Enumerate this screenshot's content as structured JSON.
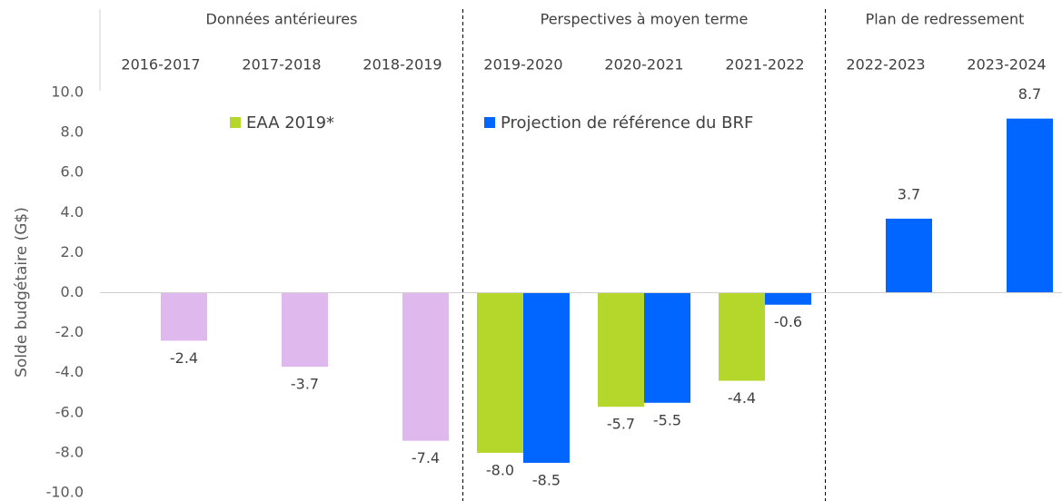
{
  "chart_data": {
    "type": "bar",
    "y_label": "Solde budgétaire (G$)",
    "sections": [
      "Données antérieures",
      "Perspectives à moyen terme",
      "Plan de redressement"
    ],
    "categories": [
      "2016-2017",
      "2017-2018",
      "2018-2019",
      "2019-2020",
      "2020-2021",
      "2021-2022",
      "2022-2023",
      "2023-2024"
    ],
    "series": [
      {
        "color": "#dfb8ee",
        "values": [
          -2.4,
          -3.7,
          -7.4,
          null,
          null,
          null,
          null,
          null
        ],
        "value_labels": [
          "-2.4",
          "-3.7",
          "-7.4",
          null,
          null,
          null,
          null,
          null
        ]
      },
      {
        "name": "EAA 2019*",
        "color": "#b5d62a",
        "values": [
          null,
          null,
          null,
          -8.0,
          -5.7,
          -4.4,
          null,
          null
        ],
        "value_labels": [
          null,
          null,
          null,
          "-8.0",
          "-5.7",
          "-4.4",
          null,
          null
        ]
      },
      {
        "name": "Projection de référence du BRF",
        "color": "#0066ff",
        "values": [
          null,
          null,
          null,
          -8.5,
          -5.5,
          -0.6,
          3.7,
          8.7
        ],
        "value_labels": [
          null,
          null,
          null,
          "-8.5",
          "-5.5",
          "-0.6",
          "3.7",
          "8.7"
        ]
      }
    ],
    "ylim": [
      -10,
      10
    ],
    "yticks": [
      {
        "value": -10,
        "label": "-10.0"
      },
      {
        "value": -8,
        "label": "-8.0"
      },
      {
        "value": -6,
        "label": "-6.0"
      },
      {
        "value": -4,
        "label": "-4.0"
      },
      {
        "value": -2,
        "label": "-2.0"
      },
      {
        "value": 0,
        "label": "0.0"
      },
      {
        "value": 2,
        "label": "2.0"
      },
      {
        "value": 4,
        "label": "4.0"
      },
      {
        "value": 6,
        "label": "6.0"
      },
      {
        "value": 8,
        "label": "8.0"
      },
      {
        "value": 10,
        "label": "10.0"
      }
    ],
    "grid": false
  }
}
